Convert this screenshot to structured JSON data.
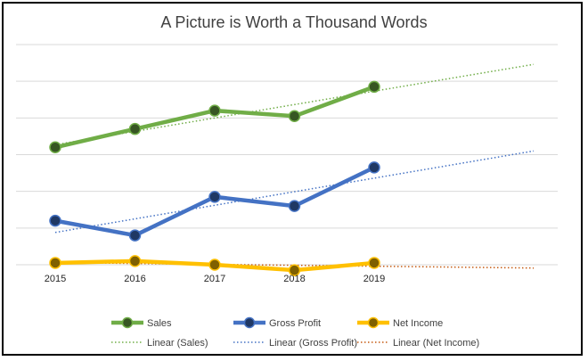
{
  "chart_data": {
    "type": "line",
    "title": "A Picture is Worth a Thousand Words",
    "categories": [
      "2015",
      "2016",
      "2017",
      "2018",
      "2019"
    ],
    "ylim": [
      0,
      6
    ],
    "grid": true,
    "legend_position": "bottom",
    "series": [
      {
        "name": "Sales",
        "values": [
          3.2,
          3.7,
          4.2,
          4.05,
          4.85
        ],
        "color": "#70ad47",
        "marker_color": "#375623"
      },
      {
        "name": "Gross Profit",
        "values": [
          1.2,
          0.8,
          1.85,
          1.6,
          2.65
        ],
        "color": "#4472c4",
        "marker_color": "#1f3864"
      },
      {
        "name": "Net Income",
        "values": [
          0.05,
          0.1,
          0.0,
          -0.15,
          0.05
        ],
        "color": "#ffc000",
        "marker_color": "#7f6000"
      }
    ],
    "trendlines": [
      {
        "name": "Linear (Sales)",
        "series": "Sales",
        "type": "linear",
        "color": "#70ad47"
      },
      {
        "name": "Linear (Gross Profit)",
        "series": "Gross Profit",
        "type": "linear",
        "color": "#4472c4"
      },
      {
        "name": "Linear (Net Income)",
        "series": "Net Income",
        "type": "linear",
        "color": "#c55a11"
      }
    ],
    "trendline_forward_periods": 2
  }
}
